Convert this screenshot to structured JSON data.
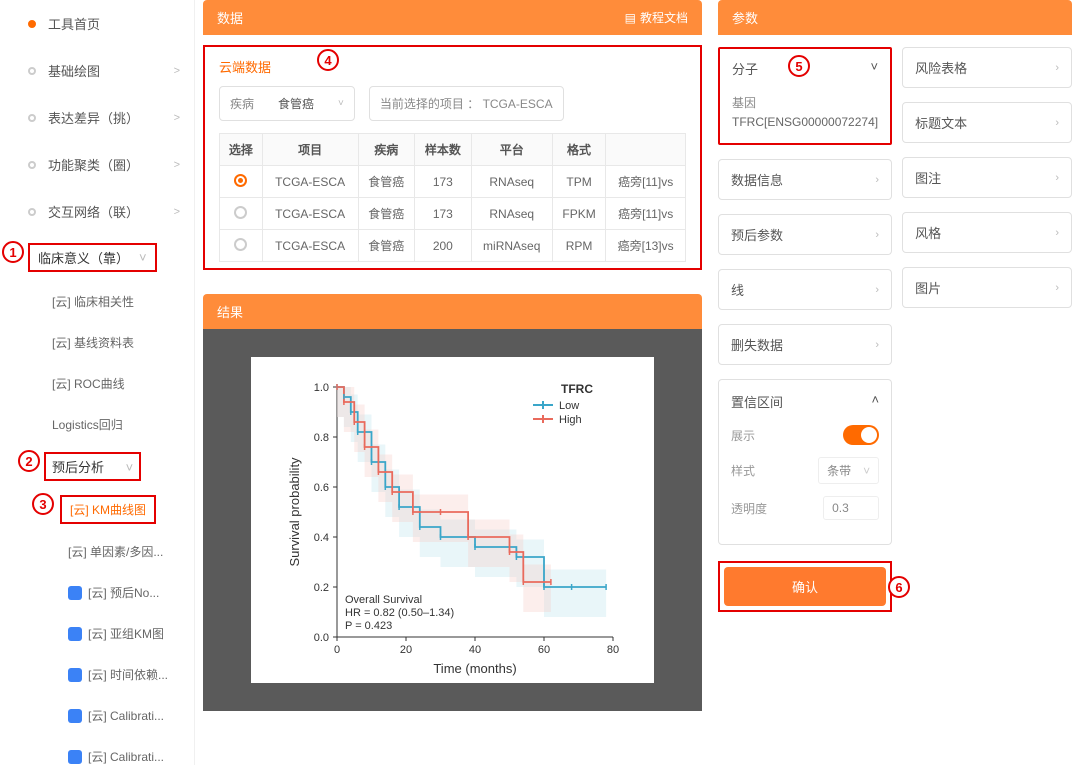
{
  "sidebar": {
    "items": [
      {
        "label": "工具首页",
        "home": true
      },
      {
        "label": "基础绘图",
        "chev": ">"
      },
      {
        "label": "表达差异（挑）",
        "chev": ">"
      },
      {
        "label": "功能聚类（圈）",
        "chev": ">"
      },
      {
        "label": "交互网络（联）",
        "chev": ">"
      },
      {
        "label": "临床意义（靠）",
        "chev": "˅",
        "hl": true,
        "num": "1"
      }
    ],
    "subs1": [
      {
        "label": "[云] 临床相关性"
      },
      {
        "label": "[云] 基线资料表"
      },
      {
        "label": "[云] ROC曲线"
      },
      {
        "label": "Logistics回归"
      }
    ],
    "prognosis": {
      "label": "预后分析",
      "chev": "˅",
      "num": "2"
    },
    "km": {
      "label": "[云] KM曲线图",
      "num": "3"
    },
    "subs2": [
      {
        "label": "[云] 单因素/多因..."
      },
      {
        "label": "[云] 预后No...",
        "blue": true
      },
      {
        "label": "[云] 亚组KM图",
        "blue": true
      },
      {
        "label": "[云] 时间依赖...",
        "blue": true
      },
      {
        "label": "[云] Calibrati...",
        "blue": true
      },
      {
        "label": "[云] Calibrati...",
        "blue": true
      }
    ]
  },
  "data_panel": {
    "title": "数据",
    "doc": "教程文档",
    "cloud": "云端数据",
    "num": "4",
    "disease_lbl": "疾病",
    "disease_val": "食管癌",
    "proj_lbl": "当前选择的项目",
    "proj_val": "TCGA-ESCA",
    "cols": [
      "选择",
      "项目",
      "疾病",
      "样本数",
      "平台",
      "格式",
      ""
    ],
    "rows": [
      {
        "sel": true,
        "c": [
          "TCGA-ESCA",
          "食管癌",
          "173",
          "RNAseq",
          "TPM",
          "癌旁[11]vs"
        ]
      },
      {
        "sel": false,
        "c": [
          "TCGA-ESCA",
          "食管癌",
          "173",
          "RNAseq",
          "FPKM",
          "癌旁[11]vs"
        ]
      },
      {
        "sel": false,
        "c": [
          "TCGA-ESCA",
          "食管癌",
          "200",
          "miRNAseq",
          "RPM",
          "癌旁[13]vs"
        ]
      }
    ]
  },
  "result": {
    "title": "结果",
    "chart": {
      "gene": "TFRC",
      "legend": [
        "Low",
        "High"
      ],
      "colors": {
        "low": "#3aa6c9",
        "high": "#e96a5c",
        "low_fill": "#bfe4ef",
        "high_fill": "#f5cfc9"
      },
      "ylabel": "Survival probability",
      "xlabel": "Time (months)",
      "yticks": [
        "0.0",
        "0.2",
        "0.4",
        "0.6",
        "0.8",
        "1.0"
      ],
      "xticks": [
        "0",
        "20",
        "40",
        "60",
        "80"
      ],
      "stats": [
        "Overall Survival",
        "HR = 0.82 (0.50–1.34)",
        "P = 0.423"
      ],
      "low_curve": [
        [
          0,
          1.0
        ],
        [
          2,
          0.96
        ],
        [
          4,
          0.9
        ],
        [
          6,
          0.82
        ],
        [
          10,
          0.7
        ],
        [
          14,
          0.6
        ],
        [
          18,
          0.52
        ],
        [
          24,
          0.44
        ],
        [
          30,
          0.4
        ],
        [
          40,
          0.36
        ],
        [
          52,
          0.32
        ],
        [
          60,
          0.2
        ],
        [
          68,
          0.2
        ],
        [
          78,
          0.2
        ]
      ],
      "high_curve": [
        [
          0,
          1.0
        ],
        [
          2,
          0.94
        ],
        [
          5,
          0.86
        ],
        [
          8,
          0.76
        ],
        [
          12,
          0.66
        ],
        [
          16,
          0.58
        ],
        [
          22,
          0.5
        ],
        [
          30,
          0.5
        ],
        [
          38,
          0.4
        ],
        [
          50,
          0.34
        ],
        [
          54,
          0.22
        ],
        [
          62,
          0.22
        ]
      ]
    }
  },
  "params": {
    "title": "参数",
    "mol": {
      "title": "分子",
      "num": "5",
      "gene_lbl": "基因",
      "gene_val": "TFRC[ENSG00000072274]"
    },
    "left": [
      "数据信息",
      "预后参数",
      "线",
      "删失数据"
    ],
    "right": [
      "风险表格",
      "标题文本",
      "图注",
      "风格",
      "图片"
    ],
    "ci": {
      "title": "置信区间",
      "show_lbl": "展示",
      "style_lbl": "样式",
      "style_val": "条带",
      "op_lbl": "透明度",
      "op_val": "0.3"
    },
    "confirm": "确认",
    "confirm_num": "6"
  }
}
